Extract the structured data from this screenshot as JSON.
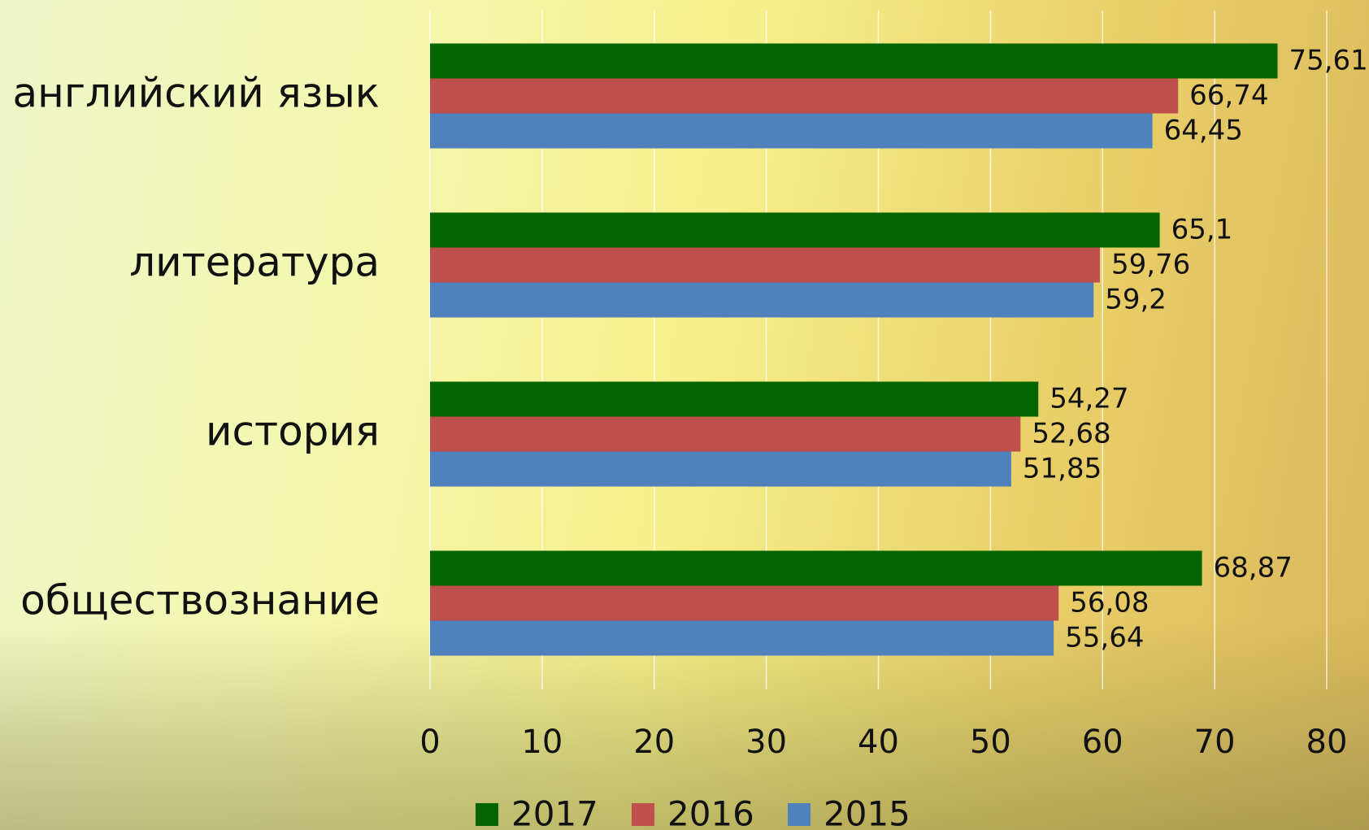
{
  "chart_data": {
    "type": "bar",
    "orientation": "horizontal",
    "categories": [
      "английский язык",
      "литература",
      "история",
      "обществознание"
    ],
    "series": [
      {
        "name": "2017",
        "color": "#006400",
        "values": [
          75.61,
          65.1,
          54.27,
          68.87
        ],
        "value_labels": [
          "75,61",
          "65,1",
          "54,27",
          "68,87"
        ]
      },
      {
        "name": "2016",
        "color": "#c0504d",
        "values": [
          66.74,
          59.76,
          52.68,
          56.08
        ],
        "value_labels": [
          "66,74",
          "59,76",
          "52,68",
          "56,08"
        ]
      },
      {
        "name": "2015",
        "color": "#4f81bd",
        "values": [
          64.45,
          59.2,
          51.85,
          55.64
        ],
        "value_labels": [
          "64,45",
          "59,2",
          "51,85",
          "55,64"
        ]
      }
    ],
    "xlim": [
      0,
      80
    ],
    "xticks": [
      0,
      10,
      20,
      30,
      40,
      50,
      60,
      70,
      80
    ],
    "grid": true,
    "legend": "bottom"
  }
}
